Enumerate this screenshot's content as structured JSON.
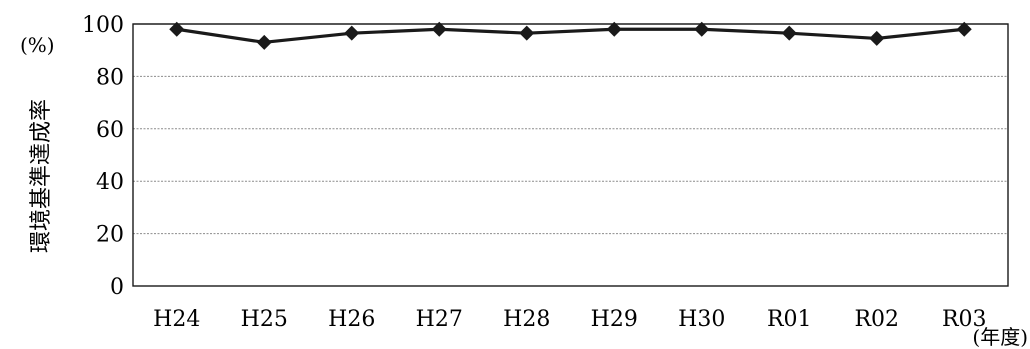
{
  "chart_data": {
    "type": "line",
    "categories": [
      "H24",
      "H25",
      "H26",
      "H27",
      "H28",
      "H29",
      "H30",
      "R01",
      "R02",
      "R03"
    ],
    "series": [
      {
        "values": [
          98,
          93,
          96.5,
          98,
          96.5,
          98,
          98,
          96.5,
          94.5,
          98
        ],
        "color": "#1a1a1a",
        "marker": "diamond"
      }
    ],
    "ylim": [
      0,
      100
    ],
    "yticks": [
      0,
      20,
      40,
      60,
      80,
      100
    ],
    "ylabel": "環境基準達成率",
    "y_unit": "(%)",
    "x_unit": "(年度)",
    "grid": "horizontal-dotted"
  }
}
